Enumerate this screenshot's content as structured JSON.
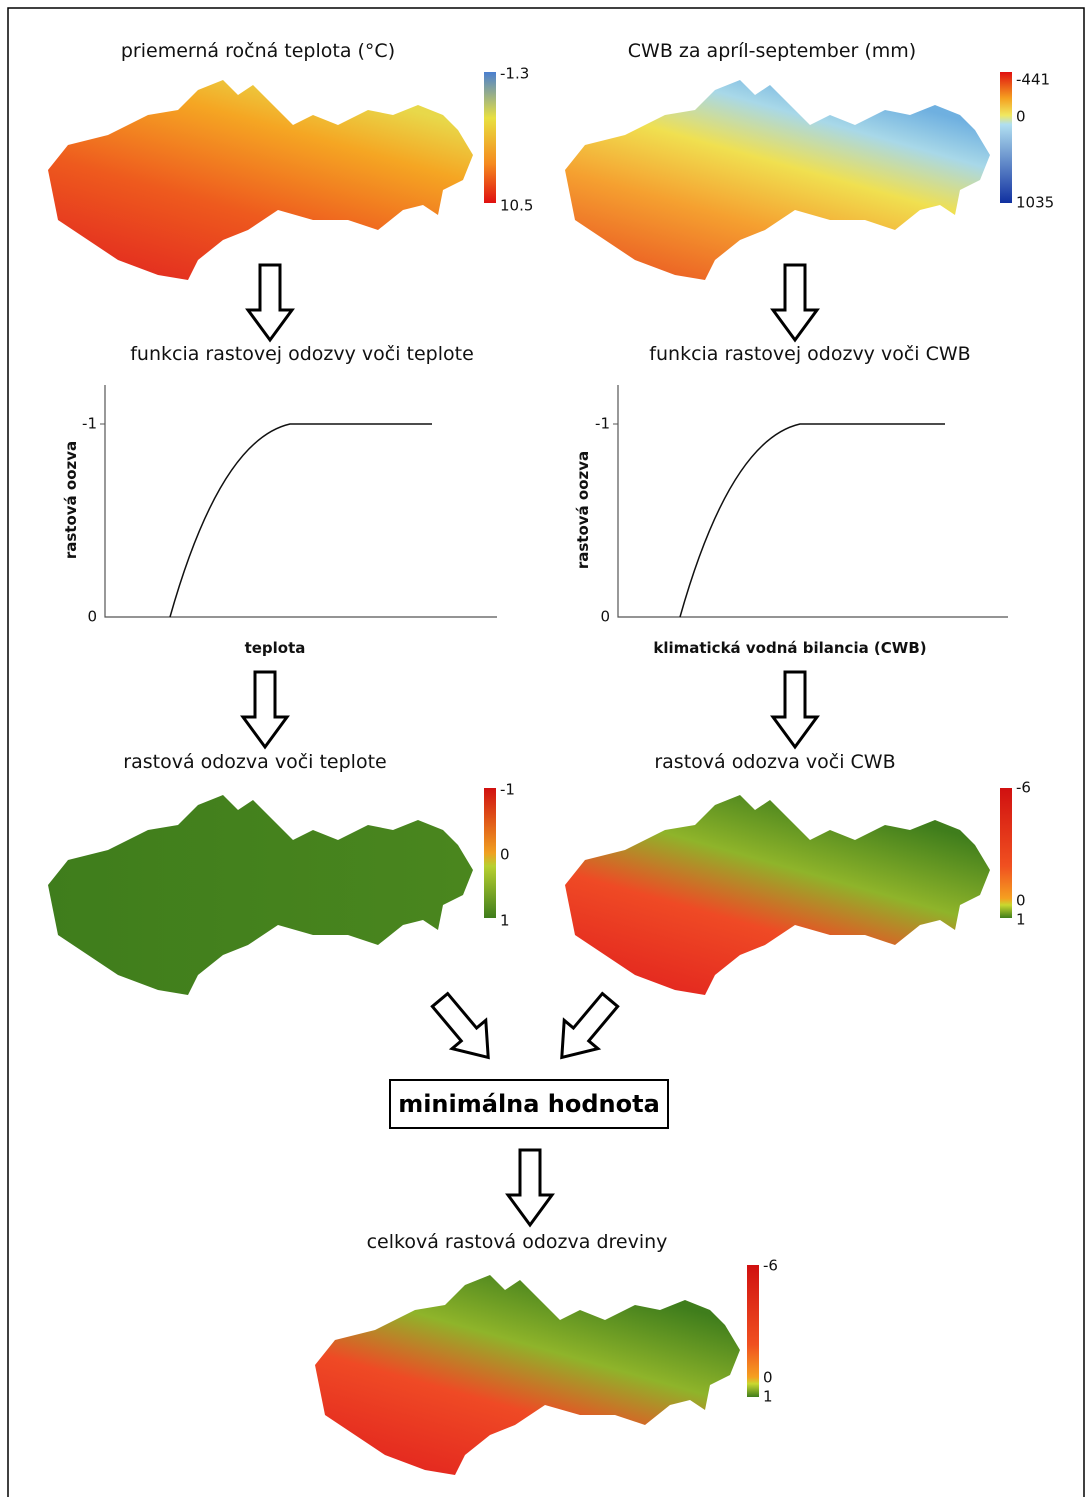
{
  "maps": [
    {
      "title": "priemerná ročná teplota (°C)",
      "legend": [
        "-1.3",
        "10.5"
      ]
    },
    {
      "title": "CWB za apríl-september (mm)",
      "legend": [
        "-441",
        "0",
        "1035"
      ]
    },
    {
      "title": "rastová odozva voči teplote",
      "legend": [
        "-1",
        "0",
        "1"
      ]
    },
    {
      "title": "rastová odozva voči CWB",
      "legend": [
        "-6",
        "0",
        "1"
      ]
    },
    {
      "title": "celková rastová odozva dreviny",
      "legend": [
        "-6",
        "0",
        "1"
      ]
    }
  ],
  "functions": [
    {
      "title": "funkcia rastovej odozvy voči teplote",
      "y_label": "rastová oozva",
      "x_label": "teplota",
      "y_ticks": [
        "-1",
        "0"
      ]
    },
    {
      "title": "funkcia rastovej odozvy voči CWB",
      "y_label": "rastová oozva",
      "x_label": "klimatická vodná bilancia (CWB)",
      "y_ticks": [
        "-1",
        "0"
      ]
    }
  ],
  "combine_box": "minimálna hodnota"
}
